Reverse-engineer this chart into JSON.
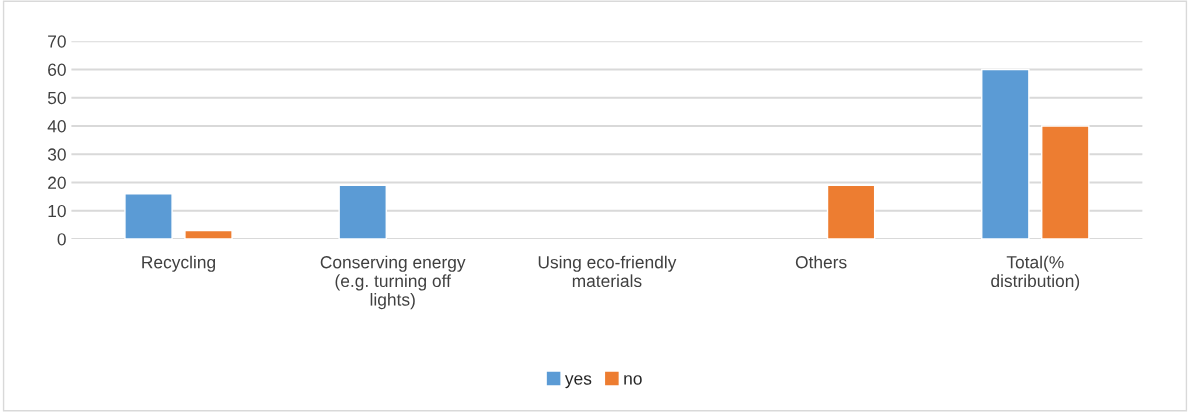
{
  "chart_data": {
    "type": "bar",
    "categories": [
      "Recycling",
      "Conserving energy\n(e.g. turning off\nlights)",
      "Using eco-friendly\nmaterials",
      "Others",
      "Total(%\ndistribution)"
    ],
    "series": [
      {
        "name": "yes",
        "color": "#5b9bd5",
        "values": [
          16,
          19,
          null,
          null,
          60
        ]
      },
      {
        "name": "no",
        "color": "#ed7d31",
        "values": [
          3,
          null,
          null,
          19,
          40
        ]
      }
    ],
    "ylim": [
      0,
      70
    ],
    "yticks": [
      0,
      10,
      20,
      30,
      40,
      50,
      60,
      70
    ],
    "grid": "y",
    "legend": "bottom"
  }
}
